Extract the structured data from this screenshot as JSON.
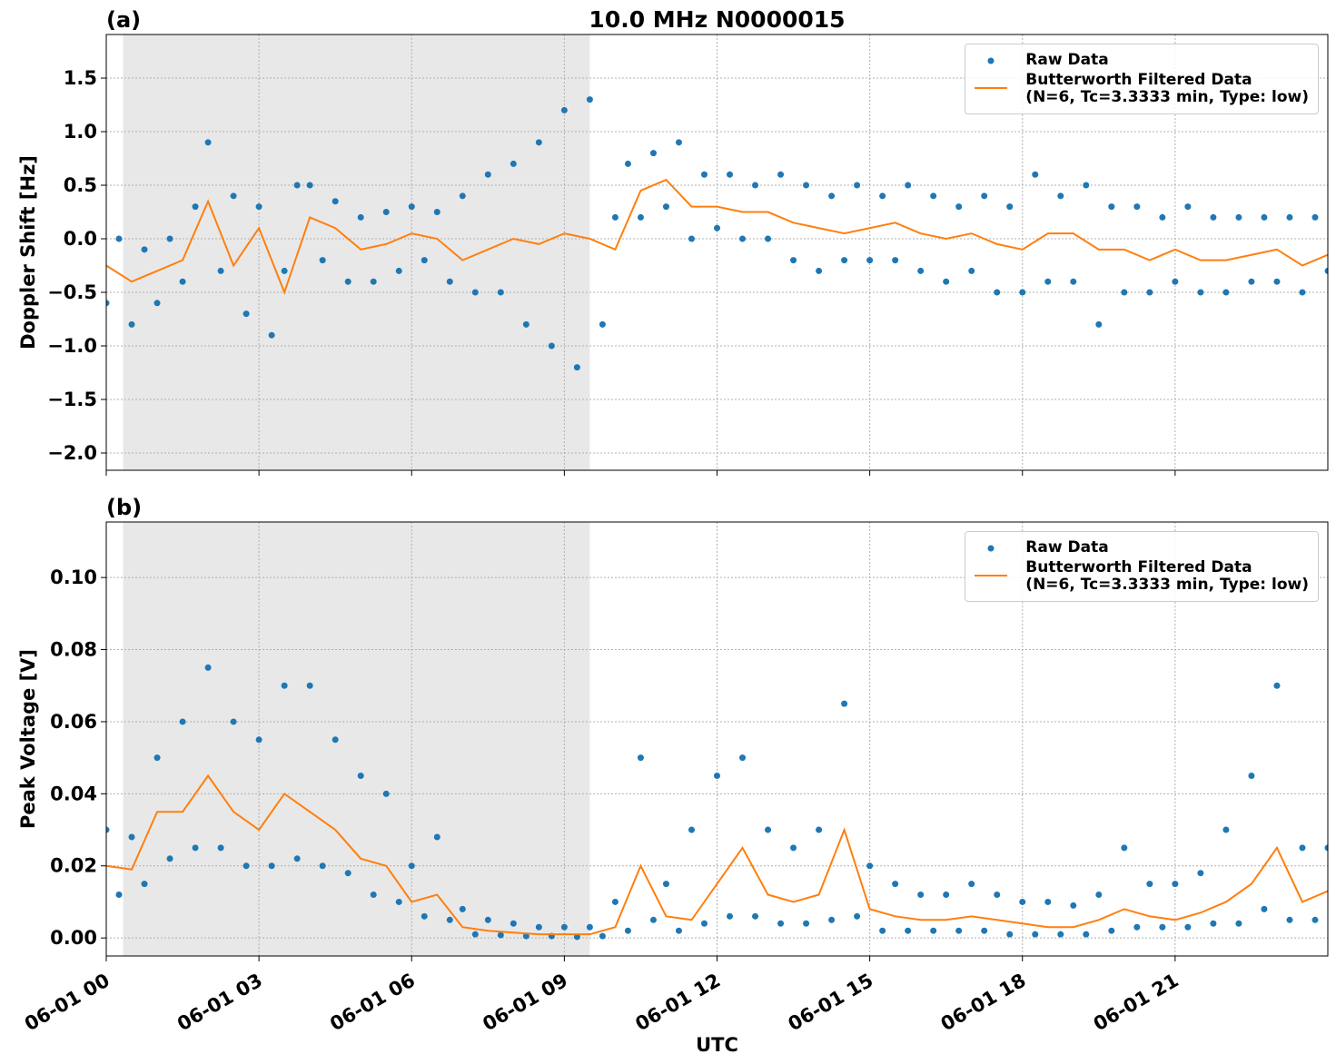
{
  "chart_data": [
    {
      "type": "scatter-line",
      "title": "10.0 MHz N0000015",
      "panel_label": "(a)",
      "ylabel": "Doppler Shift [Hz]",
      "xlim": [
        0,
        24
      ],
      "xticks": [
        0,
        3,
        6,
        9,
        12,
        15,
        18,
        21
      ],
      "ylim": [
        -2.161,
        1.907
      ],
      "yticks": [
        {
          "value": -2.0,
          "label": "−2.0"
        },
        {
          "value": -1.5,
          "label": "−1.5"
        },
        {
          "value": -1.0,
          "label": "−1.0"
        },
        {
          "value": -0.5,
          "label": "−0.5"
        },
        {
          "value": 0.0,
          "label": "0.0"
        },
        {
          "value": 0.5,
          "label": "0.5"
        },
        {
          "value": 1.0,
          "label": "1.0"
        },
        {
          "value": 1.5,
          "label": "1.5"
        }
      ],
      "grid": true,
      "shaded_span": [
        0.33,
        9.5
      ],
      "legend": "upper right",
      "series": [
        {
          "name": "Raw Data",
          "kind": "scatter",
          "color": "#1f77b4",
          "x": [
            0,
            0.25,
            0.5,
            0.75,
            1,
            1.25,
            1.5,
            1.75,
            2,
            2.25,
            2.5,
            2.75,
            3,
            3.25,
            3.5,
            3.75,
            4,
            4.25,
            4.5,
            4.75,
            5,
            5.25,
            5.5,
            5.75,
            6,
            6.25,
            6.5,
            6.75,
            7,
            7.25,
            7.5,
            7.75,
            8,
            8.25,
            8.5,
            8.75,
            9,
            9.25,
            9.5,
            9.75,
            10,
            10.25,
            10.5,
            10.75,
            11,
            11.25,
            11.5,
            11.75,
            12,
            12.25,
            12.5,
            12.75,
            13,
            13.25,
            13.5,
            13.75,
            14,
            14.25,
            14.5,
            14.75,
            15,
            15.25,
            15.5,
            15.75,
            16,
            16.25,
            16.5,
            16.75,
            17,
            17.25,
            17.5,
            17.75,
            18,
            18.25,
            18.5,
            18.75,
            19,
            19.25,
            19.5,
            19.75,
            20,
            20.25,
            20.5,
            20.75,
            21,
            21.25,
            21.5,
            21.75,
            22,
            22.25,
            22.5,
            22.75,
            23,
            23.25,
            23.5,
            23.75,
            24
          ],
          "values": [
            -0.6,
            0.0,
            -0.8,
            -0.1,
            -0.6,
            0.0,
            -0.4,
            0.3,
            0.9,
            -0.3,
            0.4,
            -0.7,
            0.3,
            -0.9,
            -0.3,
            0.5,
            0.5,
            -0.2,
            0.35,
            -0.4,
            0.2,
            -0.4,
            0.25,
            -0.3,
            0.3,
            -0.2,
            0.25,
            -0.4,
            0.4,
            -0.5,
            0.6,
            -0.5,
            0.7,
            -0.8,
            0.9,
            -1.0,
            1.2,
            -1.2,
            1.3,
            -0.8,
            0.2,
            0.7,
            0.2,
            0.8,
            0.3,
            0.9,
            0.0,
            0.6,
            0.1,
            0.6,
            0.0,
            0.5,
            0.0,
            0.6,
            -0.2,
            0.5,
            -0.3,
            0.4,
            -0.2,
            0.5,
            -0.2,
            0.4,
            -0.2,
            0.5,
            -0.3,
            0.4,
            -0.4,
            0.3,
            -0.3,
            0.4,
            -0.5,
            0.3,
            -0.5,
            0.6,
            -0.4,
            0.4,
            -0.4,
            0.5,
            -0.8,
            0.3,
            -0.5,
            0.3,
            -0.5,
            0.2,
            -0.4,
            0.3,
            -0.5,
            0.2,
            -0.5,
            0.2,
            -0.4,
            0.2,
            -0.4,
            0.2,
            -0.5,
            0.2,
            -0.3
          ]
        },
        {
          "name": "Butterworth Filtered Data\n(N=6, Tc=3.3333 min, Type: low)",
          "kind": "line",
          "color": "#ff7f0e",
          "x": [
            0,
            0.5,
            1,
            1.5,
            2,
            2.5,
            3,
            3.5,
            4,
            4.5,
            5,
            5.5,
            6,
            6.5,
            7,
            7.5,
            8,
            8.5,
            9,
            9.5,
            10,
            10.5,
            11,
            11.5,
            12,
            12.5,
            13,
            13.5,
            14,
            14.5,
            15,
            15.5,
            16,
            16.5,
            17,
            17.5,
            18,
            18.5,
            19,
            19.5,
            20,
            20.5,
            21,
            21.5,
            22,
            22.5,
            23,
            23.5,
            24
          ],
          "values": [
            -0.25,
            -0.4,
            -0.3,
            -0.2,
            0.35,
            -0.25,
            0.1,
            -0.5,
            0.2,
            0.1,
            -0.1,
            -0.05,
            0.05,
            0,
            -0.2,
            -0.1,
            0,
            -0.05,
            0.05,
            0,
            -0.1,
            0.45,
            0.55,
            0.3,
            0.3,
            0.25,
            0.25,
            0.15,
            0.1,
            0.05,
            0.1,
            0.15,
            0.05,
            0,
            0.05,
            -0.05,
            -0.1,
            0.05,
            0.05,
            -0.1,
            -0.1,
            -0.2,
            -0.1,
            -0.2,
            -0.2,
            -0.15,
            -0.1,
            -0.25,
            -0.15
          ]
        }
      ]
    },
    {
      "type": "scatter-line",
      "panel_label": "(b)",
      "ylabel": "Peak Voltage [V]",
      "xlabel": "UTC",
      "xlim": [
        0,
        24
      ],
      "xticks": [
        {
          "value": 0,
          "label": "06-01 00"
        },
        {
          "value": 3,
          "label": "06-01 03"
        },
        {
          "value": 6,
          "label": "06-01 06"
        },
        {
          "value": 9,
          "label": "06-01 09"
        },
        {
          "value": 12,
          "label": "06-01 12"
        },
        {
          "value": 15,
          "label": "06-01 15"
        },
        {
          "value": 18,
          "label": "06-01 18"
        },
        {
          "value": 21,
          "label": "06-01 21"
        }
      ],
      "ylim": [
        -0.005,
        0.1154
      ],
      "yticks": [
        {
          "value": 0,
          "label": "0.00"
        },
        {
          "value": 0.02,
          "label": "0.02"
        },
        {
          "value": 0.04,
          "label": "0.04"
        },
        {
          "value": 0.06,
          "label": "0.06"
        },
        {
          "value": 0.08,
          "label": "0.08"
        },
        {
          "value": 0.1,
          "label": "0.10"
        }
      ],
      "grid": true,
      "shaded_span": [
        0.33,
        9.5
      ],
      "legend": "upper right",
      "series": [
        {
          "name": "Raw Data",
          "kind": "scatter",
          "color": "#1f77b4",
          "x": [
            0,
            0.25,
            0.5,
            0.75,
            1,
            1.25,
            1.5,
            1.75,
            2,
            2.25,
            2.5,
            2.75,
            3,
            3.25,
            3.5,
            3.75,
            4,
            4.25,
            4.5,
            4.75,
            5,
            5.25,
            5.5,
            5.75,
            6,
            6.25,
            6.5,
            6.75,
            7,
            7.25,
            7.5,
            7.75,
            8,
            8.25,
            8.5,
            8.75,
            9,
            9.25,
            9.5,
            9.75,
            10,
            10.25,
            10.5,
            10.75,
            11,
            11.25,
            11.5,
            11.75,
            12,
            12.25,
            12.5,
            12.75,
            13,
            13.25,
            13.5,
            13.75,
            14,
            14.25,
            14.5,
            14.75,
            15,
            15.25,
            15.5,
            15.75,
            16,
            16.25,
            16.5,
            16.75,
            17,
            17.25,
            17.5,
            17.75,
            18,
            18.25,
            18.5,
            18.75,
            19,
            19.25,
            19.5,
            19.75,
            20,
            20.25,
            20.5,
            20.75,
            21,
            21.25,
            21.5,
            21.75,
            22,
            22.25,
            22.5,
            22.75,
            23,
            23.25,
            23.5,
            23.75,
            24
          ],
          "values": [
            0.03,
            0.012,
            0.028,
            0.015,
            0.05,
            0.022,
            0.06,
            0.025,
            0.075,
            0.025,
            0.06,
            0.02,
            0.055,
            0.02,
            0.07,
            0.022,
            0.07,
            0.02,
            0.055,
            0.018,
            0.045,
            0.012,
            0.04,
            0.01,
            0.02,
            0.006,
            0.028,
            0.005,
            0.008,
            0.001,
            0.005,
            0.0008,
            0.004,
            0.0005,
            0.003,
            0.0005,
            0.003,
            0.0003,
            0.003,
            0.0005,
            0.01,
            0.002,
            0.05,
            0.005,
            0.015,
            0.002,
            0.03,
            0.004,
            0.045,
            0.006,
            0.05,
            0.006,
            0.03,
            0.004,
            0.025,
            0.004,
            0.03,
            0.005,
            0.065,
            0.006,
            0.02,
            0.002,
            0.015,
            0.002,
            0.012,
            0.002,
            0.012,
            0.002,
            0.015,
            0.002,
            0.012,
            0.001,
            0.01,
            0.001,
            0.01,
            0.001,
            0.009,
            0.001,
            0.012,
            0.002,
            0.025,
            0.003,
            0.015,
            0.003,
            0.015,
            0.003,
            0.018,
            0.004,
            0.03,
            0.004,
            0.045,
            0.008,
            0.07,
            0.005,
            0.025,
            0.005,
            0.025
          ]
        },
        {
          "name": "Butterworth Filtered Data\n(N=6, Tc=3.3333 min, Type: low)",
          "kind": "line",
          "color": "#ff7f0e",
          "x": [
            0,
            0.5,
            1,
            1.5,
            2,
            2.5,
            3,
            3.5,
            4,
            4.5,
            5,
            5.5,
            6,
            6.5,
            7,
            7.5,
            8,
            8.5,
            9,
            9.5,
            10,
            10.5,
            11,
            11.5,
            12,
            12.5,
            13,
            13.5,
            14,
            14.5,
            15,
            15.5,
            16,
            16.5,
            17,
            17.5,
            18,
            18.5,
            19,
            19.5,
            20,
            20.5,
            21,
            21.5,
            22,
            22.5,
            23,
            23.5,
            24
          ],
          "values": [
            0.02,
            0.019,
            0.035,
            0.035,
            0.045,
            0.035,
            0.03,
            0.04,
            0.035,
            0.03,
            0.022,
            0.02,
            0.01,
            0.012,
            0.003,
            0.002,
            0.0015,
            0.001,
            0.001,
            0.001,
            0.003,
            0.02,
            0.006,
            0.005,
            0.015,
            0.025,
            0.012,
            0.01,
            0.012,
            0.03,
            0.008,
            0.006,
            0.005,
            0.005,
            0.006,
            0.005,
            0.004,
            0.003,
            0.003,
            0.005,
            0.008,
            0.006,
            0.005,
            0.007,
            0.01,
            0.015,
            0.025,
            0.01,
            0.013
          ]
        }
      ]
    }
  ]
}
